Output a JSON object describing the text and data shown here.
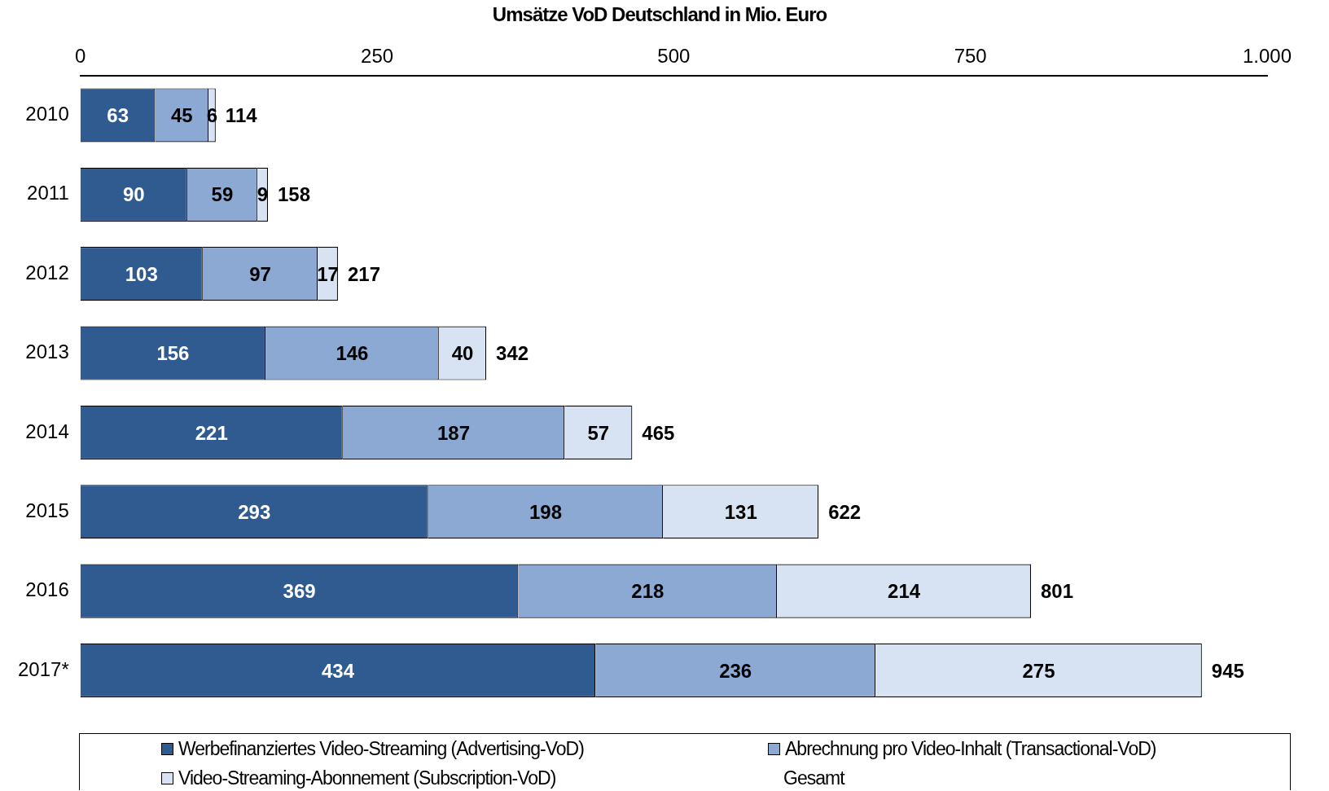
{
  "chart_data": {
    "type": "bar",
    "orientation": "horizontal",
    "stacked": true,
    "title": "Umsätze VoD Deutschland  in Mio. Euro",
    "categories": [
      "2010",
      "2011",
      "2012",
      "2013",
      "2014",
      "2015",
      "2016",
      "2017*"
    ],
    "series": [
      {
        "name": "Werbefinanziertes Video-Streaming (Advertising-VoD)",
        "color": "#2f5b91",
        "values": [
          63,
          90,
          103,
          156,
          221,
          293,
          369,
          434
        ]
      },
      {
        "name": "Abrechnung pro Video-Inhalt (Transactional-VoD)",
        "color": "#8ca9d3",
        "values": [
          45,
          59,
          97,
          146,
          187,
          198,
          218,
          236
        ]
      },
      {
        "name": "Video-Streaming-Abonnement (Subscription-VoD)",
        "color": "#d7e3f2",
        "values": [
          6,
          9,
          17,
          40,
          57,
          131,
          214,
          275
        ]
      }
    ],
    "totals": [
      "114",
      "158",
      "217",
      "342",
      "465",
      "622",
      "801",
      "945"
    ],
    "annotations": [
      "Gesamt"
    ],
    "xlim": [
      0,
      1000
    ],
    "xticks": [
      0,
      250,
      500,
      750,
      {
        "value": 1000,
        "label": "1.000"
      }
    ],
    "data_labels": true,
    "grid": false,
    "legend": "bottom"
  }
}
